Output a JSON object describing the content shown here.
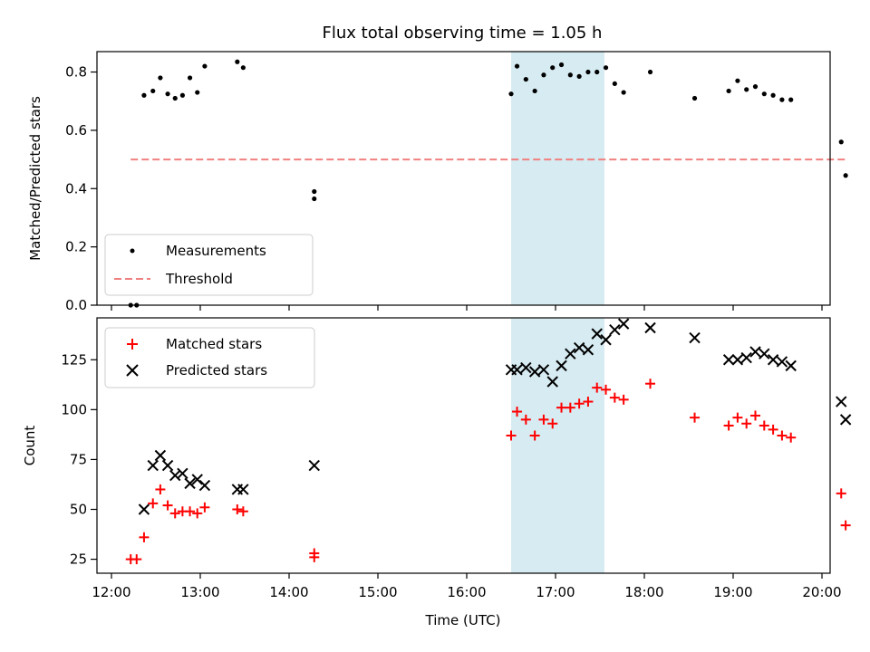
{
  "chart_data": [
    {
      "type": "scatter",
      "title": "Flux total observing time = 1.05 h",
      "xlabel": "",
      "ylabel": "Matched/Predicted stars",
      "xlim": [
        "12:00",
        "20:00"
      ],
      "ylim": [
        0,
        0.87
      ],
      "yticks": [
        "0.0",
        "0.2",
        "0.4",
        "0.6",
        "0.8"
      ],
      "shaded_interval": [
        "16:30",
        "17:33"
      ],
      "legend_position": "lower-left",
      "series": [
        {
          "name": "Measurements",
          "marker": "dot",
          "color": "#000000",
          "points": [
            [
              "12:13",
              0.0
            ],
            [
              "12:17",
              0.0
            ],
            [
              "12:22",
              0.72
            ],
            [
              "12:28",
              0.735
            ],
            [
              "12:33",
              0.78
            ],
            [
              "12:38",
              0.725
            ],
            [
              "12:43",
              0.71
            ],
            [
              "12:48",
              0.72
            ],
            [
              "12:53",
              0.78
            ],
            [
              "12:58",
              0.73
            ],
            [
              "13:03",
              0.82
            ],
            [
              "13:25",
              0.835
            ],
            [
              "13:29",
              0.815
            ],
            [
              "14:17",
              0.39
            ],
            [
              "14:17",
              0.365
            ],
            [
              "16:30",
              0.725
            ],
            [
              "16:34",
              0.82
            ],
            [
              "16:40",
              0.775
            ],
            [
              "16:46",
              0.735
            ],
            [
              "16:52",
              0.79
            ],
            [
              "16:58",
              0.815
            ],
            [
              "17:04",
              0.825
            ],
            [
              "17:10",
              0.79
            ],
            [
              "17:16",
              0.785
            ],
            [
              "17:22",
              0.8
            ],
            [
              "17:28",
              0.8
            ],
            [
              "17:34",
              0.815
            ],
            [
              "17:40",
              0.76
            ],
            [
              "17:46",
              0.73
            ],
            [
              "18:04",
              0.8
            ],
            [
              "18:34",
              0.71
            ],
            [
              "18:57",
              0.735
            ],
            [
              "19:03",
              0.77
            ],
            [
              "19:09",
              0.74
            ],
            [
              "19:15",
              0.75
            ],
            [
              "19:21",
              0.725
            ],
            [
              "19:27",
              0.72
            ],
            [
              "19:33",
              0.705
            ],
            [
              "19:39",
              0.705
            ],
            [
              "20:13",
              0.56
            ],
            [
              "20:16",
              0.445
            ]
          ]
        },
        {
          "name": "Threshold",
          "style": "dashed",
          "color": "#f08080",
          "points": [
            [
              "12:13",
              0.5
            ],
            [
              "20:16",
              0.5
            ]
          ]
        }
      ]
    },
    {
      "type": "scatter",
      "title": "",
      "xlabel": "Time (UTC)",
      "ylabel": "Count",
      "xlim": [
        "12:00",
        "20:00"
      ],
      "ylim": [
        18,
        146
      ],
      "yticks": [
        "25",
        "50",
        "75",
        "100",
        "125"
      ],
      "xticks": [
        "12:00",
        "13:00",
        "14:00",
        "15:00",
        "16:00",
        "17:00",
        "18:00",
        "19:00",
        "20:00"
      ],
      "shaded_interval": [
        "16:30",
        "17:33"
      ],
      "legend_position": "upper-left",
      "series": [
        {
          "name": "Matched stars",
          "marker": "plus",
          "color": "#ff0000",
          "points": [
            [
              "12:13",
              25
            ],
            [
              "12:17",
              25
            ],
            [
              "12:22",
              36
            ],
            [
              "12:28",
              53
            ],
            [
              "12:33",
              60
            ],
            [
              "12:38",
              52
            ],
            [
              "12:43",
              48
            ],
            [
              "12:48",
              49
            ],
            [
              "12:53",
              49
            ],
            [
              "12:58",
              48
            ],
            [
              "13:03",
              51
            ],
            [
              "13:25",
              50
            ],
            [
              "13:29",
              49
            ],
            [
              "14:17",
              28
            ],
            [
              "14:17",
              26
            ],
            [
              "16:30",
              87
            ],
            [
              "16:34",
              99
            ],
            [
              "16:40",
              95
            ],
            [
              "16:46",
              87
            ],
            [
              "16:52",
              95
            ],
            [
              "16:58",
              93
            ],
            [
              "17:04",
              101
            ],
            [
              "17:10",
              101
            ],
            [
              "17:16",
              103
            ],
            [
              "17:22",
              104
            ],
            [
              "17:28",
              111
            ],
            [
              "17:34",
              110
            ],
            [
              "17:40",
              106
            ],
            [
              "17:46",
              105
            ],
            [
              "18:04",
              113
            ],
            [
              "18:34",
              96
            ],
            [
              "18:57",
              92
            ],
            [
              "19:03",
              96
            ],
            [
              "19:09",
              93
            ],
            [
              "19:15",
              97
            ],
            [
              "19:21",
              92
            ],
            [
              "19:27",
              90
            ],
            [
              "19:33",
              87
            ],
            [
              "19:39",
              86
            ],
            [
              "20:13",
              58
            ],
            [
              "20:16",
              42
            ]
          ]
        },
        {
          "name": "Predicted stars",
          "marker": "x",
          "color": "#000000",
          "points": [
            [
              "12:22",
              50
            ],
            [
              "12:28",
              72
            ],
            [
              "12:33",
              77
            ],
            [
              "12:38",
              72
            ],
            [
              "12:43",
              67
            ],
            [
              "12:48",
              68
            ],
            [
              "12:53",
              63
            ],
            [
              "12:58",
              65
            ],
            [
              "13:03",
              62
            ],
            [
              "13:25",
              60
            ],
            [
              "13:29",
              60
            ],
            [
              "14:17",
              72
            ],
            [
              "16:30",
              120
            ],
            [
              "16:34",
              120
            ],
            [
              "16:40",
              121
            ],
            [
              "16:46",
              119
            ],
            [
              "16:52",
              120
            ],
            [
              "16:58",
              114
            ],
            [
              "17:04",
              122
            ],
            [
              "17:10",
              128
            ],
            [
              "17:16",
              131
            ],
            [
              "17:22",
              130
            ],
            [
              "17:28",
              138
            ],
            [
              "17:34",
              135
            ],
            [
              "17:40",
              140
            ],
            [
              "17:46",
              143
            ],
            [
              "18:04",
              141
            ],
            [
              "18:34",
              136
            ],
            [
              "18:57",
              125
            ],
            [
              "19:03",
              125
            ],
            [
              "19:09",
              126
            ],
            [
              "19:15",
              129
            ],
            [
              "19:21",
              128
            ],
            [
              "19:27",
              125
            ],
            [
              "19:33",
              124
            ],
            [
              "19:39",
              122
            ],
            [
              "20:13",
              104
            ],
            [
              "20:16",
              95
            ]
          ]
        }
      ]
    }
  ]
}
